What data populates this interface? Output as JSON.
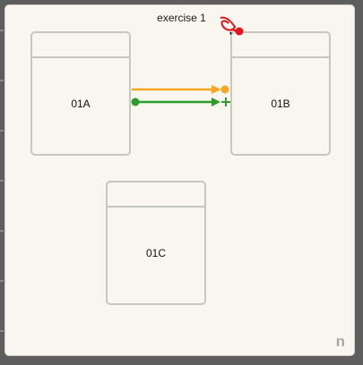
{
  "diagram": {
    "title": "exercise 1",
    "brand": "n",
    "nodes": [
      {
        "id": "01A",
        "label": "01A"
      },
      {
        "id": "01B",
        "label": "01B"
      },
      {
        "id": "01C",
        "label": "01C"
      }
    ],
    "links": [
      {
        "from": "01A",
        "to": "01B",
        "color": "#f5a623",
        "end_marker": "dot"
      },
      {
        "from": "01A",
        "to": "01B",
        "color": "#2a9d2a",
        "end_marker": "plus"
      }
    ],
    "colors": {
      "link_orange": "#f5a623",
      "link_green": "#2a9d2a",
      "pin_red": "#e0151b",
      "node_border": "#c8c6c1",
      "canvas": "#f8f6ee"
    }
  }
}
